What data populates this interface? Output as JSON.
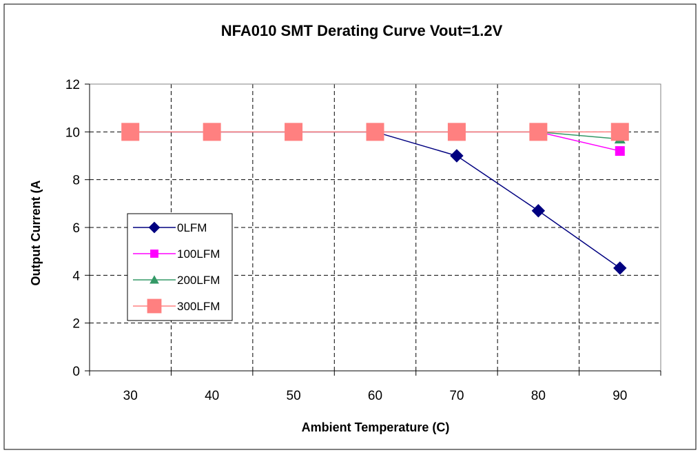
{
  "chart_data": {
    "type": "line",
    "title": "NFA010 SMT Derating Curve Vout=1.2V",
    "xlabel": "Ambient Temperature (C)",
    "ylabel": "Output Current (A",
    "x": [
      30,
      40,
      50,
      60,
      70,
      80,
      90
    ],
    "xlim": [
      25,
      95
    ],
    "ylim": [
      0,
      12
    ],
    "yticks": [
      0,
      2,
      4,
      6,
      8,
      10,
      12
    ],
    "grid": true,
    "legend_position": "left",
    "series": [
      {
        "name": "0LFM",
        "values": [
          10,
          10,
          10,
          10,
          9.0,
          6.7,
          4.3
        ],
        "color": "#000080",
        "marker": "diamond"
      },
      {
        "name": "100LFM",
        "values": [
          10,
          10,
          10,
          10,
          10,
          10,
          9.2
        ],
        "color": "#FF00FF",
        "marker": "square"
      },
      {
        "name": "200LFM",
        "values": [
          10,
          10,
          10,
          10,
          10,
          10,
          9.7
        ],
        "color": "#339966",
        "marker": "triangle"
      },
      {
        "name": "300LFM",
        "values": [
          10,
          10,
          10,
          10,
          10,
          10,
          10
        ],
        "color": "#FF8080",
        "marker": "square-large"
      }
    ]
  }
}
